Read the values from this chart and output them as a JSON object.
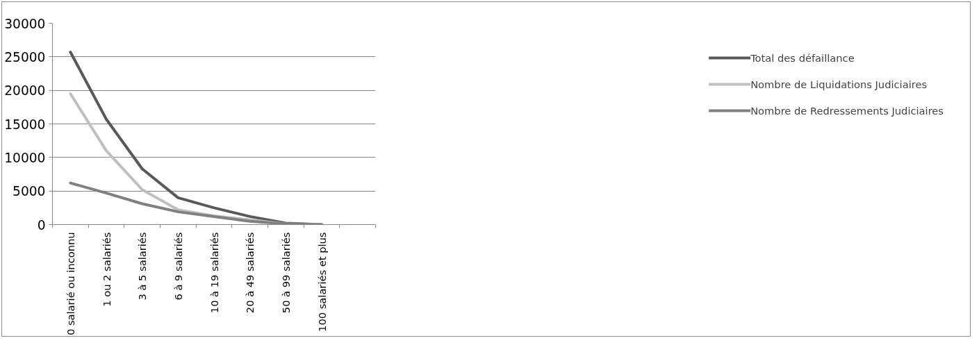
{
  "chart_data": {
    "type": "line",
    "categories": [
      "0 salarié ou inconnu",
      "1 ou 2 salariés",
      "3 à 5 salariés",
      "6 à 9 salariés",
      "10 à 19 salariés",
      "20 à 49 salariés",
      "50 à 99 salariés",
      "100 salariés et plus",
      null
    ],
    "series": [
      {
        "name": "Total des défaillance",
        "color": "#595959",
        "values": [
          25700,
          15700,
          8300,
          4000,
          2500,
          1200,
          200,
          0,
          null
        ]
      },
      {
        "name": "Nombre de Liquidations Judiciaires",
        "color": "#bfbfbf",
        "values": [
          19500,
          11000,
          5200,
          2200,
          1300,
          700,
          100,
          0,
          null
        ]
      },
      {
        "name": "Nombre de Redressements Judiciaires",
        "color": "#808080",
        "values": [
          6200,
          4700,
          3100,
          1900,
          1200,
          500,
          100,
          0,
          null
        ]
      }
    ],
    "ylim": [
      0,
      30000
    ],
    "yticks": [
      0,
      5000,
      10000,
      15000,
      20000,
      25000,
      30000
    ],
    "grid": "y",
    "legend": "right",
    "line_style": "solid",
    "marker": "none"
  }
}
